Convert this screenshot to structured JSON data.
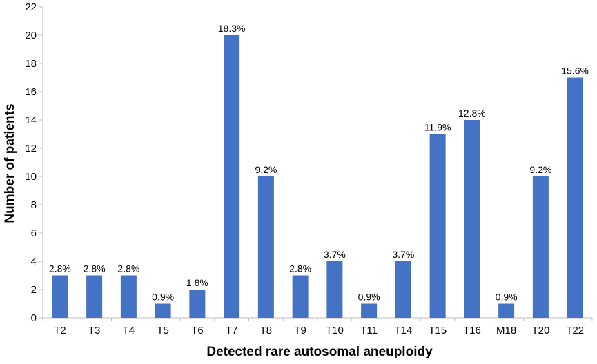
{
  "chart_data": {
    "type": "bar",
    "title": "",
    "xlabel": "Detected rare autosomal aneuploidy",
    "ylabel": "Number of patients",
    "ylim": [
      0,
      22
    ],
    "yticks": [
      0,
      2,
      4,
      6,
      8,
      10,
      12,
      14,
      16,
      18,
      20,
      22
    ],
    "grid": false,
    "categories": [
      "T2",
      "T3",
      "T4",
      "T5",
      "T6",
      "T7",
      "T8",
      "T9",
      "T10",
      "T11",
      "T14",
      "T15",
      "T16",
      "M18",
      "T20",
      "T22"
    ],
    "series": [
      {
        "name": "Number of patients",
        "color": "#4472C4",
        "values": [
          3,
          3,
          3,
          1,
          2,
          20,
          10,
          3,
          4,
          1,
          4,
          13,
          14,
          1,
          10,
          17
        ],
        "labels": [
          "2.8%",
          "2.8%",
          "2.8%",
          "0.9%",
          "1.8%",
          "18.3%",
          "9.2%",
          "2.8%",
          "3.7%",
          "0.9%",
          "3.7%",
          "11.9%",
          "12.8%",
          "0.9%",
          "9.2%",
          "15.6%"
        ]
      }
    ]
  }
}
